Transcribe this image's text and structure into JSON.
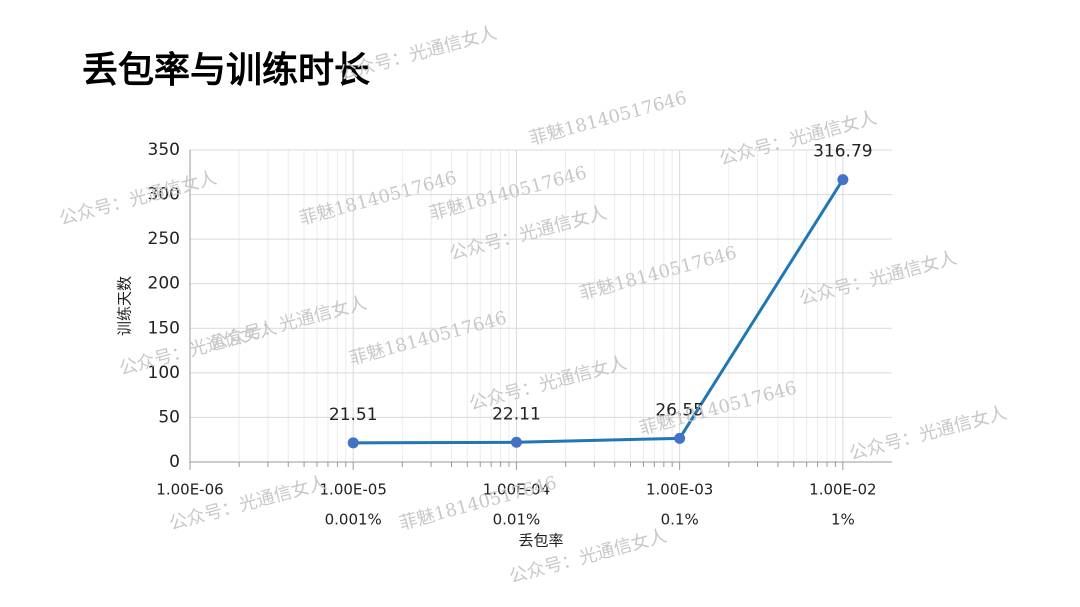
{
  "chart_data": {
    "type": "line",
    "title": "丢包率与训练时长",
    "x_label": "丢包率",
    "y_label": "训练天数",
    "x": [
      1e-05,
      0.0001,
      0.001,
      0.01
    ],
    "x_sublabels": [
      "0.001%",
      "0.01%",
      "0.1%",
      "1%"
    ],
    "series": [
      {
        "name": "训练天数",
        "color": "#1f77b4",
        "marker_color": "#4472c4",
        "values": [
          21.51,
          22.11,
          26.55,
          316.79
        ]
      }
    ],
    "xscale": "log",
    "xlim": [
      1e-06,
      0.02
    ],
    "xticks": [
      {
        "value": 1e-06,
        "label": "1.00E-06"
      },
      {
        "value": 1e-05,
        "label": "1.00E-05"
      },
      {
        "value": 0.0001,
        "label": "1.00E-04"
      },
      {
        "value": 0.001,
        "label": "1.00E-03"
      },
      {
        "value": 0.01,
        "label": "1.00E-02"
      }
    ],
    "ylim": [
      0,
      350
    ],
    "yticks": [
      0,
      50,
      100,
      150,
      200,
      250,
      300,
      350
    ],
    "grid": true,
    "watermarks": [
      "公众号：光通信女人",
      "菲魅18140517646"
    ]
  }
}
